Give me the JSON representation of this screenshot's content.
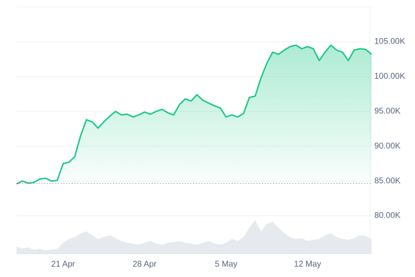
{
  "chart_data": {
    "type": "line",
    "categories": [
      null,
      null,
      null,
      null,
      null,
      null,
      null,
      null,
      "21 Apr",
      null,
      null,
      null,
      null,
      null,
      null,
      null,
      null,
      null,
      null,
      null,
      null,
      null,
      "28 Apr",
      null,
      null,
      null,
      null,
      null,
      null,
      null,
      null,
      null,
      null,
      null,
      null,
      null,
      "5 May",
      null,
      null,
      null,
      null,
      null,
      null,
      null,
      null,
      null,
      null,
      null,
      null,
      null,
      "12 May",
      null,
      null,
      null,
      null,
      null,
      null,
      null,
      null,
      null,
      null,
      null
    ],
    "series": [
      {
        "color": "#16c784",
        "values": [
          84600,
          85000,
          84700,
          84800,
          85300,
          85400,
          85000,
          85100,
          87500,
          87700,
          88500,
          91500,
          93800,
          93500,
          92600,
          93500,
          94300,
          95000,
          94500,
          94600,
          94200,
          94500,
          94900,
          94600,
          95000,
          95300,
          94800,
          94500,
          96000,
          96800,
          96500,
          97400,
          96600,
          96200,
          95800,
          95500,
          94200,
          94500,
          94200,
          94700,
          97000,
          97200,
          99800,
          101900,
          103500,
          103200,
          103800,
          104300,
          104500,
          104000,
          104300,
          104000,
          102300,
          103500,
          104500,
          103800,
          103500,
          102300,
          103800,
          104000,
          103900,
          103200
        ]
      }
    ],
    "baseline": 84660,
    "baseline_color": "#ea3943",
    "volume": [
      20,
      15,
      18,
      12,
      14,
      10,
      12,
      14,
      30,
      40,
      45,
      55,
      60,
      50,
      40,
      45,
      50,
      42,
      35,
      30,
      28,
      25,
      30,
      35,
      28,
      25,
      30,
      32,
      35,
      30,
      28,
      25,
      30,
      35,
      28,
      25,
      30,
      40,
      35,
      45,
      70,
      90,
      60,
      80,
      85,
      70,
      55,
      45,
      40,
      42,
      35,
      38,
      40,
      50,
      55,
      45,
      40,
      38,
      42,
      50,
      48,
      40
    ],
    "volume_lim": [
      0,
      100
    ],
    "ylim": [
      74500,
      110000
    ],
    "yticks": [
      {
        "value": 80000,
        "label": "80.00K"
      },
      {
        "value": 85000,
        "label": "85.00K"
      },
      {
        "value": 90000,
        "label": "90.00K"
      },
      {
        "value": 95000,
        "label": "95.00K"
      },
      {
        "value": 100000,
        "label": "100.00K"
      },
      {
        "value": 105000,
        "label": "105.00K"
      }
    ],
    "grid": true
  }
}
